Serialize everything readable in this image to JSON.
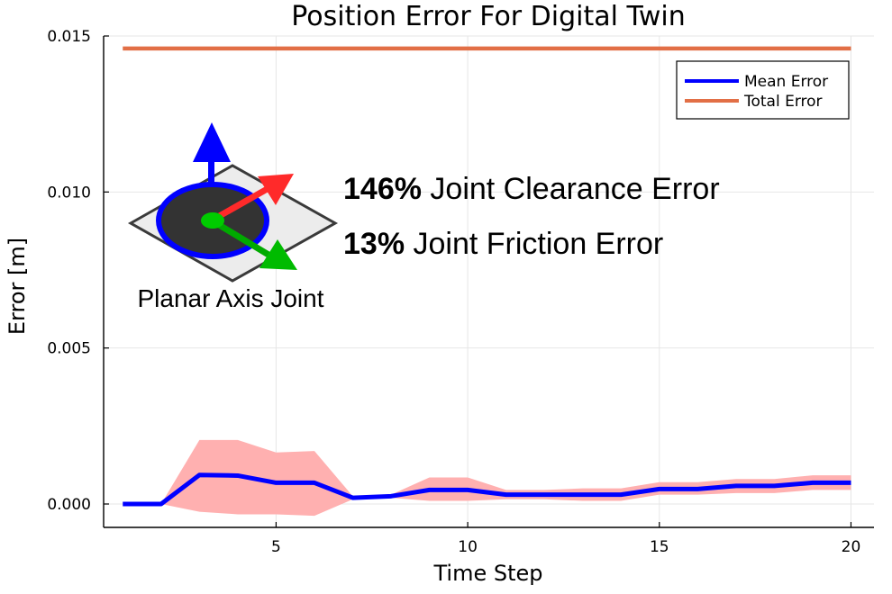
{
  "chart_data": {
    "type": "line",
    "title": "Position Error For Digital Twin",
    "xlabel": "Time Step",
    "ylabel": "Error [m]",
    "xlim": [
      0.5,
      20.6
    ],
    "ylim": [
      -0.00075,
      0.015
    ],
    "xticks": [
      5,
      10,
      15,
      20
    ],
    "xtick_labels": [
      "5",
      "10",
      "15",
      "20"
    ],
    "yticks": [
      0.0,
      0.005,
      0.01,
      0.015
    ],
    "ytick_labels": [
      "0.000",
      "0.005",
      "0.010",
      "0.015"
    ],
    "grid": true,
    "legend_position": "top-right",
    "x": [
      1,
      2,
      3,
      4,
      5,
      6,
      7,
      8,
      9,
      10,
      11,
      12,
      13,
      14,
      15,
      16,
      17,
      18,
      19,
      20
    ],
    "series": [
      {
        "name": "Mean Error",
        "color": "#0000ff",
        "values": [
          0.0,
          0.0,
          0.00093,
          0.00091,
          0.00068,
          0.00068,
          0.0002,
          0.00025,
          0.00045,
          0.00045,
          0.0003,
          0.0003,
          0.0003,
          0.0003,
          0.00048,
          0.00048,
          0.00058,
          0.00058,
          0.00068,
          0.00068
        ]
      },
      {
        "name": "Total Error",
        "color": "#e26f46",
        "values": [
          0.0146,
          0.0146,
          0.0146,
          0.0146,
          0.0146,
          0.0146,
          0.0146,
          0.0146,
          0.0146,
          0.0146,
          0.0146,
          0.0146,
          0.0146,
          0.0146,
          0.0146,
          0.0146,
          0.0146,
          0.0146,
          0.0146,
          0.0146
        ]
      }
    ],
    "band": {
      "color": "#ffb0b0",
      "upper": [
        0.0,
        0.0,
        0.00205,
        0.00205,
        0.00165,
        0.0017,
        0.00025,
        0.0003,
        0.00085,
        0.00085,
        0.00045,
        0.00045,
        0.0005,
        0.0005,
        0.0007,
        0.0007,
        0.0008,
        0.0008,
        0.00092,
        0.00092
      ],
      "lower": [
        0.0,
        0.0,
        -0.00025,
        -0.00033,
        -0.00033,
        -0.00038,
        0.00015,
        0.0002,
        0.0001,
        0.0001,
        0.00015,
        0.00015,
        0.0001,
        0.0001,
        0.0003,
        0.0003,
        0.00035,
        0.00035,
        0.00045,
        0.00045
      ]
    },
    "annotations": [
      {
        "bold": "146%",
        "text": " Joint Clearance Error"
      },
      {
        "bold": "13%",
        "text": " Joint Friction Error"
      }
    ],
    "inset_label": "Planar Axis Joint"
  }
}
